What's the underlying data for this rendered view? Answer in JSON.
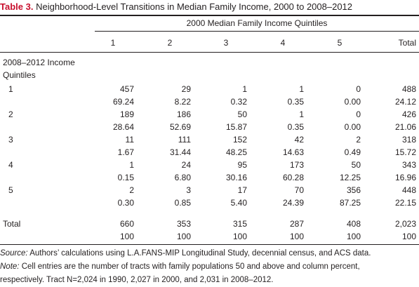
{
  "title": {
    "label": "Table 3.",
    "text": "Neighborhood-Level Transitions in Median Family Income, 2000 to 2008–2012"
  },
  "header": {
    "group": "2000 Median Family Income Quintiles",
    "columns": [
      "1",
      "2",
      "3",
      "4",
      "5",
      "Total"
    ]
  },
  "stub": {
    "line1": "2008–2012 Income",
    "line2": "Quintiles"
  },
  "rows": [
    {
      "label": "1",
      "counts": [
        "457",
        "29",
        "1",
        "1",
        "0",
        "488"
      ],
      "percents": [
        "69.24",
        "8.22",
        "0.32",
        "0.35",
        "0.00",
        "24.12"
      ]
    },
    {
      "label": "2",
      "counts": [
        "189",
        "186",
        "50",
        "1",
        "0",
        "426"
      ],
      "percents": [
        "28.64",
        "52.69",
        "15.87",
        "0.35",
        "0.00",
        "21.06"
      ]
    },
    {
      "label": "3",
      "counts": [
        "11",
        "111",
        "152",
        "42",
        "2",
        "318"
      ],
      "percents": [
        "1.67",
        "31.44",
        "48.25",
        "14.63",
        "0.49",
        "15.72"
      ]
    },
    {
      "label": "4",
      "counts": [
        "1",
        "24",
        "95",
        "173",
        "50",
        "343"
      ],
      "percents": [
        "0.15",
        "6.80",
        "30.16",
        "60.28",
        "12.25",
        "16.96"
      ]
    },
    {
      "label": "5",
      "counts": [
        "2",
        "3",
        "17",
        "70",
        "356",
        "448"
      ],
      "percents": [
        "0.30",
        "0.85",
        "5.40",
        "24.39",
        "87.25",
        "22.15"
      ]
    }
  ],
  "total": {
    "label": "Total",
    "counts": [
      "660",
      "353",
      "315",
      "287",
      "408",
      "2,023"
    ],
    "percents": [
      "100",
      "100",
      "100",
      "100",
      "100",
      "100"
    ]
  },
  "notes": {
    "source_label": "Source:",
    "source_text": " Authors’ calculations using L.A.FANS-MIP Longitudinal Study, decennial census, and ACS data.",
    "note_label": "Note:",
    "note_text": " Cell entries are the number of tracts with family populations 50 and above and column percent,",
    "note_text2": "respectively.  Tract N=2,024 in 1990, 2,027 in 2000, and 2,031 in 2008–2012."
  }
}
